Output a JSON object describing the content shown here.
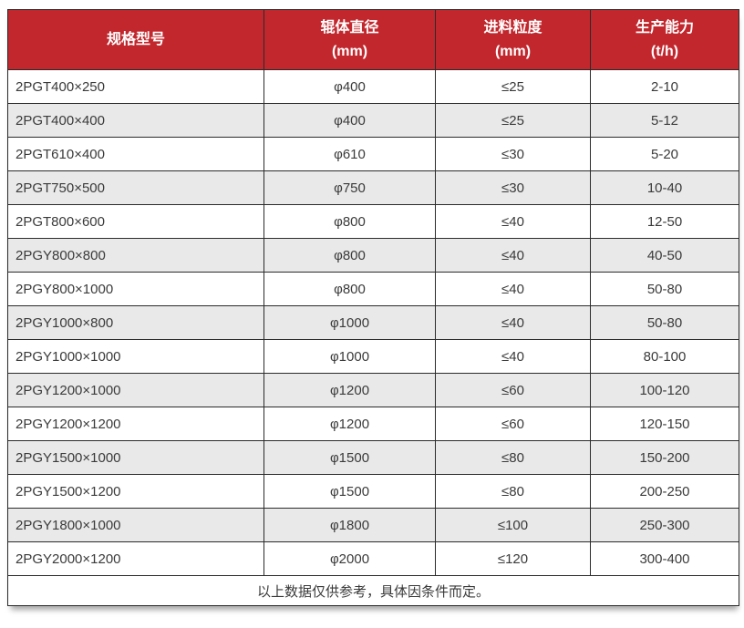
{
  "colors": {
    "header_bg": "#c1272d",
    "header_text": "#ffffff",
    "row_alt_bg": "#e9e9e9",
    "row_bg": "#ffffff",
    "border": "#2b2b2b",
    "body_text": "#3a3a3a"
  },
  "table": {
    "columns": [
      {
        "label": "规格型号",
        "unit": ""
      },
      {
        "label": "辊体直径",
        "unit": "(mm)"
      },
      {
        "label": "进料粒度",
        "unit": "(mm)"
      },
      {
        "label": "生产能力",
        "unit": "(t/h)"
      }
    ],
    "rows": [
      {
        "model": "2PGT400×250",
        "diameter": "φ400",
        "feed_size": "≤25",
        "capacity": "2-10"
      },
      {
        "model": "2PGT400×400",
        "diameter": "φ400",
        "feed_size": "≤25",
        "capacity": "5-12"
      },
      {
        "model": "2PGT610×400",
        "diameter": "φ610",
        "feed_size": "≤30",
        "capacity": "5-20"
      },
      {
        "model": "2PGT750×500",
        "diameter": "φ750",
        "feed_size": "≤30",
        "capacity": "10-40"
      },
      {
        "model": "2PGT800×600",
        "diameter": "φ800",
        "feed_size": "≤40",
        "capacity": "12-50"
      },
      {
        "model": "2PGY800×800",
        "diameter": "φ800",
        "feed_size": "≤40",
        "capacity": "40-50"
      },
      {
        "model": "2PGY800×1000",
        "diameter": "φ800",
        "feed_size": "≤40",
        "capacity": "50-80"
      },
      {
        "model": "2PGY1000×800",
        "diameter": "φ1000",
        "feed_size": "≤40",
        "capacity": "50-80"
      },
      {
        "model": "2PGY1000×1000",
        "diameter": "φ1000",
        "feed_size": "≤40",
        "capacity": "80-100"
      },
      {
        "model": "2PGY1200×1000",
        "diameter": "φ1200",
        "feed_size": "≤60",
        "capacity": "100-120"
      },
      {
        "model": "2PGY1200×1200",
        "diameter": "φ1200",
        "feed_size": "≤60",
        "capacity": "120-150"
      },
      {
        "model": "2PGY1500×1000",
        "diameter": "φ1500",
        "feed_size": "≤80",
        "capacity": "150-200"
      },
      {
        "model": "2PGY1500×1200",
        "diameter": "φ1500",
        "feed_size": "≤80",
        "capacity": "200-250"
      },
      {
        "model": "2PGY1800×1000",
        "diameter": "φ1800",
        "feed_size": "≤100",
        "capacity": "250-300"
      },
      {
        "model": "2PGY2000×1200",
        "diameter": "φ2000",
        "feed_size": "≤120",
        "capacity": "300-400"
      }
    ],
    "footer_note": "以上数据仅供参考，具体因条件而定。"
  }
}
